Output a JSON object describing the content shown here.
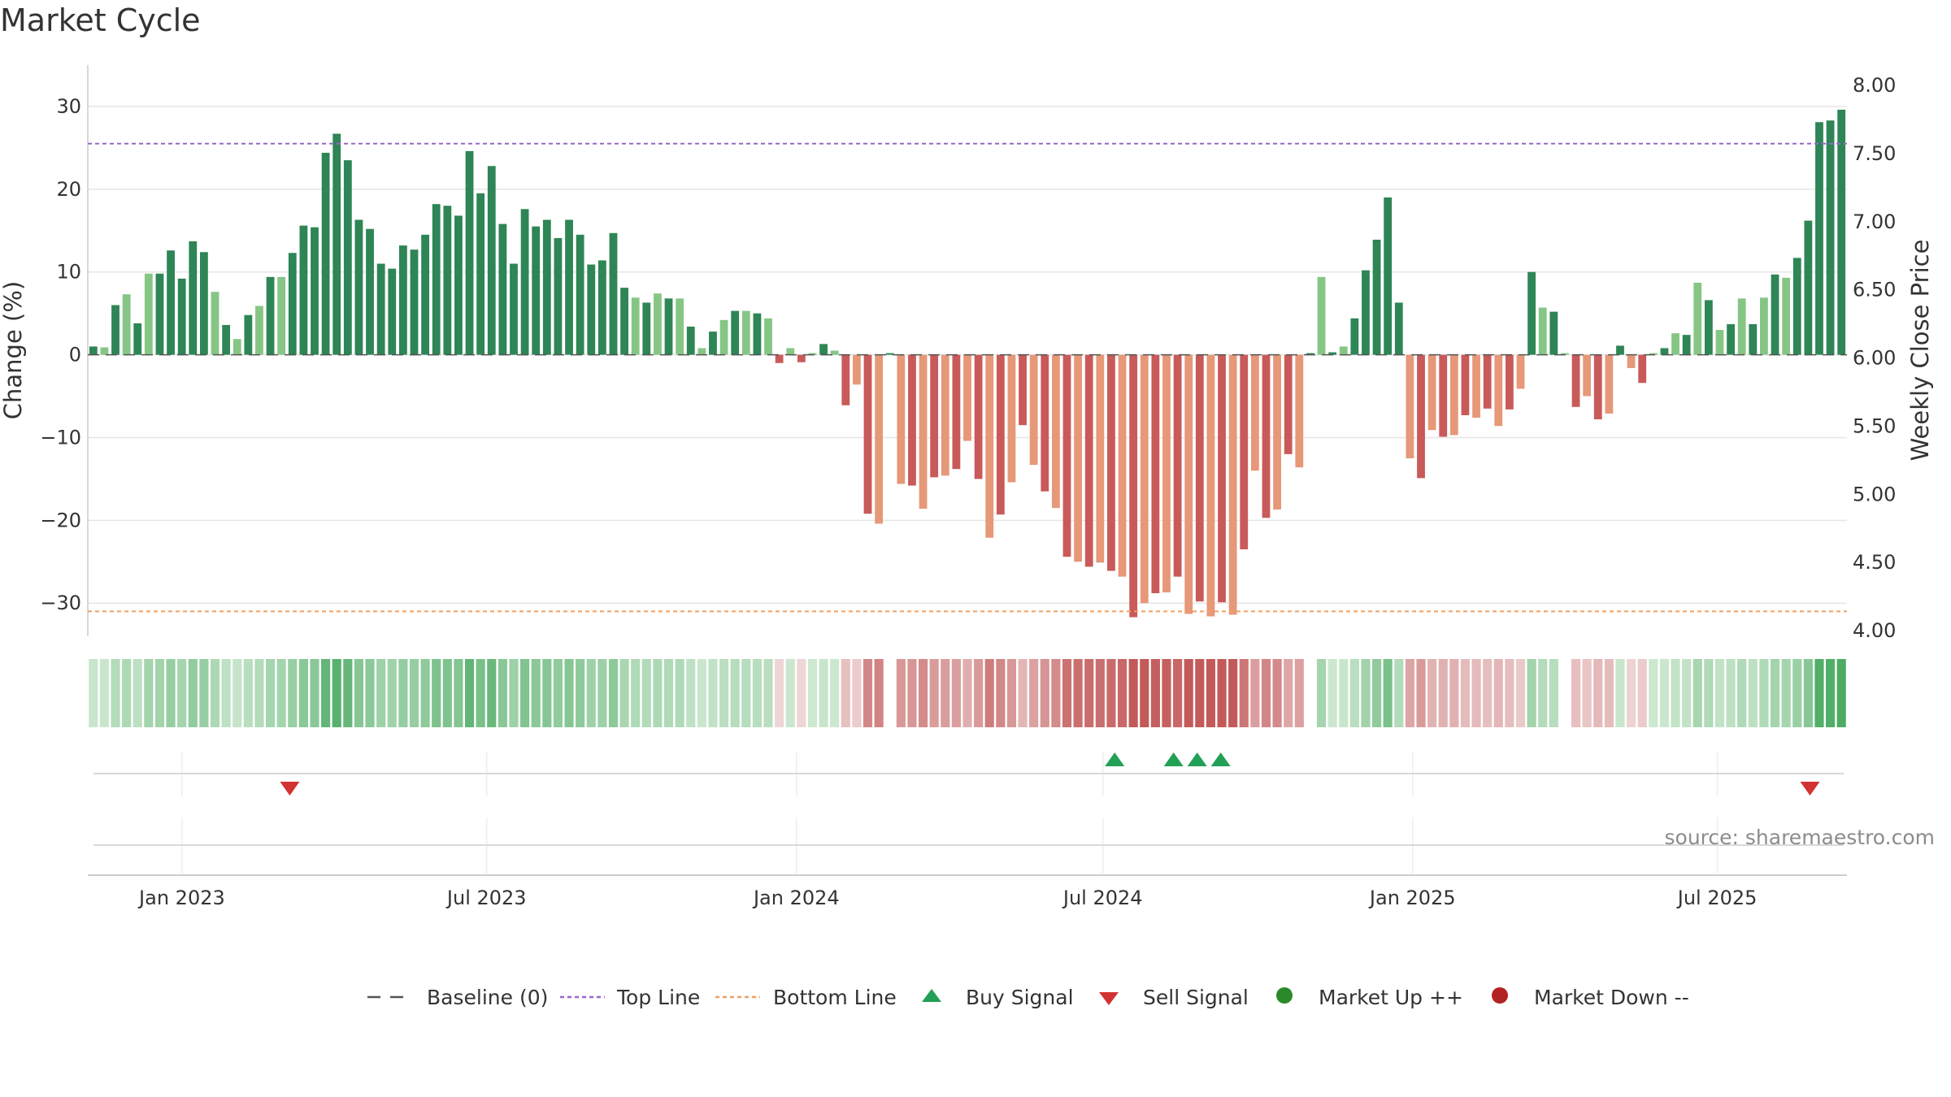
{
  "chart_data": {
    "type": "bar",
    "title": "Market Cycle",
    "ylabel": "Change (%)",
    "y2label": "Weekly Close Price",
    "ylim": [
      -34,
      35
    ],
    "y_ticks": [
      "30",
      "20",
      "10",
      "0",
      "−10",
      "−20",
      "−30"
    ],
    "y_tick_values": [
      30,
      20,
      10,
      0,
      -10,
      -20,
      -30
    ],
    "y2lim": [
      4.0,
      8.0
    ],
    "y2_ticks": [
      "8.00",
      "7.50",
      "7.00",
      "6.50",
      "6.00",
      "5.50",
      "5.00",
      "4.50",
      "4.00"
    ],
    "y2_tick_values": [
      8.0,
      7.5,
      7.0,
      6.5,
      6.0,
      5.5,
      5.0,
      4.5,
      4.0
    ],
    "x_start": "2022-11-07",
    "x_end": "2025-09-15",
    "x_ticks": [
      {
        "label": "Jan 2023",
        "date": "2023-01-01"
      },
      {
        "label": "Jul 2023",
        "date": "2023-07-01"
      },
      {
        "label": "Jan 2024",
        "date": "2024-01-01"
      },
      {
        "label": "Jul 2024",
        "date": "2024-07-01"
      },
      {
        "label": "Jan 2025",
        "date": "2025-01-01"
      },
      {
        "label": "Jul 2025",
        "date": "2025-07-01"
      }
    ],
    "top_line": 25.5,
    "bottom_line": -31,
    "baseline": 0,
    "values": [
      1,
      0.9,
      6,
      7.3,
      3.8,
      9.8,
      9.8,
      12.6,
      9.2,
      13.7,
      12.4,
      7.6,
      3.6,
      1.9,
      4.8,
      5.9,
      9.4,
      9.4,
      12.3,
      15.6,
      15.4,
      24.4,
      26.7,
      23.5,
      16.3,
      15.2,
      11,
      10.4,
      13.2,
      12.7,
      14.5,
      18.2,
      18,
      16.8,
      24.6,
      19.5,
      22.8,
      15.8,
      11,
      17.6,
      15.5,
      16.3,
      14.1,
      16.3,
      14.5,
      10.9,
      11.4,
      14.7,
      8.1,
      6.9,
      6.3,
      7.4,
      6.8,
      6.8,
      3.4,
      0.8,
      2.8,
      4.2,
      5.3,
      5.3,
      5,
      4.4,
      -1,
      0.8,
      -0.9,
      0.2,
      1.3,
      0.5,
      -6.1,
      -3.6,
      -19.2,
      -20.4,
      0,
      -15.6,
      -15.8,
      -18.6,
      -14.8,
      -14.6,
      -13.8,
      -10.4,
      -15,
      -22.1,
      -19.3,
      -15.4,
      -8.5,
      -13.3,
      -16.5,
      -18.5,
      -24.4,
      -25,
      -25.6,
      -25.1,
      -26.1,
      -26.8,
      -31.7,
      -30,
      -28.8,
      -28.7,
      -26.8,
      -31.3,
      -29.8,
      -31.6,
      -29.9,
      -31.4,
      -23.5,
      -14,
      -19.7,
      -18.7,
      -12,
      -13.6,
      0,
      9.4,
      0.3,
      1,
      4.4,
      10.2,
      13.9,
      19,
      6.3,
      -12.5,
      -14.9,
      -9.1,
      -9.9,
      -9.7,
      -7.3,
      -7.6,
      -6.5,
      -8.6,
      -6.6,
      -4.1,
      10,
      5.7,
      5.2,
      0,
      -6.3,
      -5,
      -7.8,
      -7.1,
      1.1,
      -1.6,
      -3.4,
      0.2,
      0.8,
      2.6,
      2.4,
      8.7,
      6.6,
      3,
      3.7,
      6.8,
      3.7,
      6.9,
      9.7,
      9.3,
      11.7,
      16.2,
      28.1,
      28.3,
      29.6
    ],
    "colors": {
      "up_strong": "#2e8555",
      "up_light": "#86c685",
      "down_strong": "#c95a5a",
      "down_light": "#e69878",
      "top_line": "#9966cc",
      "bottom_line": "#f0a060",
      "buy": "#22a055",
      "sell": "#d23232",
      "market_up": "#2a8a2a",
      "market_down": "#b22222",
      "baseline": "#555555"
    },
    "buy_signals": [
      "2024-07-08",
      "2024-08-12",
      "2024-08-26",
      "2024-09-09"
    ],
    "sell_signals": [
      "2023-03-06",
      "2025-08-25"
    ]
  },
  "legend": [
    {
      "label": "Baseline (0)",
      "marker": "dash",
      "color": "#555555"
    },
    {
      "label": "Top Line",
      "marker": "dot",
      "color": "#9966cc"
    },
    {
      "label": "Bottom Line",
      "marker": "dot",
      "color": "#f0a060"
    },
    {
      "label": "Buy Signal",
      "marker": "triangle-up",
      "color": "#22a055"
    },
    {
      "label": "Sell Signal",
      "marker": "triangle-down",
      "color": "#d23232"
    },
    {
      "label": "Market Up ++",
      "marker": "circle",
      "color": "#2a8a2a"
    },
    {
      "label": "Market Down --",
      "marker": "circle",
      "color": "#b22222"
    }
  ],
  "source": "source: sharemaestro.com"
}
